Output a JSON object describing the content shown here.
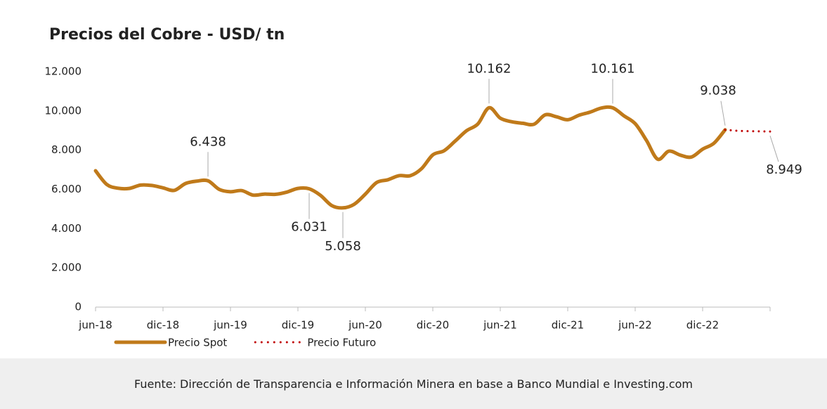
{
  "chart_data": {
    "type": "line",
    "title": "Precios del Cobre - USD/ tn",
    "categories": [
      "jun-18",
      null,
      null,
      null,
      null,
      null,
      "dic-18",
      null,
      null,
      null,
      null,
      null,
      "jun-19",
      null,
      null,
      null,
      null,
      null,
      "dic-19",
      null,
      null,
      null,
      null,
      null,
      "jun-20",
      null,
      null,
      null,
      null,
      null,
      "dic-20",
      null,
      null,
      null,
      null,
      null,
      "jun-21",
      null,
      null,
      null,
      null,
      null,
      "dic-21",
      null,
      null,
      null,
      null,
      null,
      "jun-22",
      null,
      null,
      null,
      null,
      null,
      "dic-22",
      null,
      null,
      null,
      null,
      null,
      null
    ],
    "series": [
      {
        "name": "Precio Spot",
        "color": "#c07a1a",
        "dash": false,
        "values": [
          6950,
          6250,
          6060,
          6050,
          6220,
          6200,
          6080,
          5950,
          6300,
          6420,
          6438,
          6000,
          5880,
          5940,
          5710,
          5760,
          5750,
          5860,
          6050,
          6031,
          5700,
          5180,
          5058,
          5240,
          5760,
          6350,
          6490,
          6700,
          6700,
          7060,
          7760,
          7970,
          8470,
          8990,
          9330,
          10162,
          9630,
          9450,
          9370,
          9320,
          9800,
          9700,
          9550,
          9780,
          9940,
          10150,
          10161,
          9750,
          9350,
          8500,
          7540,
          7950,
          7750,
          7650,
          8050,
          8350,
          9038,
          null,
          null,
          null,
          null
        ],
        "value_labels": [
          null,
          null,
          null,
          null,
          null,
          null,
          null,
          null,
          null,
          null,
          "6.438",
          null,
          null,
          null,
          null,
          null,
          null,
          null,
          null,
          "6.031",
          null,
          null,
          "5.058",
          null,
          null,
          null,
          null,
          null,
          null,
          null,
          null,
          null,
          null,
          null,
          null,
          "10.162",
          null,
          null,
          null,
          null,
          null,
          null,
          null,
          null,
          null,
          null,
          "10.161",
          null,
          null,
          null,
          null,
          null,
          null,
          null,
          null,
          null,
          "9.038",
          null,
          null,
          null,
          null
        ]
      },
      {
        "name": "Precio Futuro",
        "color": "#c00000",
        "dash": true,
        "values": [
          null,
          null,
          null,
          null,
          null,
          null,
          null,
          null,
          null,
          null,
          null,
          null,
          null,
          null,
          null,
          null,
          null,
          null,
          null,
          null,
          null,
          null,
          null,
          null,
          null,
          null,
          null,
          null,
          null,
          null,
          null,
          null,
          null,
          null,
          null,
          null,
          null,
          null,
          null,
          null,
          null,
          null,
          null,
          null,
          null,
          null,
          null,
          null,
          null,
          null,
          null,
          null,
          null,
          null,
          null,
          null,
          9038,
          8990,
          8970,
          8960,
          8949
        ],
        "value_labels": [
          null,
          null,
          null,
          null,
          null,
          null,
          null,
          null,
          null,
          null,
          null,
          null,
          null,
          null,
          null,
          null,
          null,
          null,
          null,
          null,
          null,
          null,
          null,
          null,
          null,
          null,
          null,
          null,
          null,
          null,
          null,
          null,
          null,
          null,
          null,
          null,
          null,
          null,
          null,
          null,
          null,
          null,
          null,
          null,
          null,
          null,
          null,
          null,
          null,
          null,
          null,
          null,
          null,
          null,
          null,
          null,
          null,
          null,
          null,
          null,
          "8.949"
        ]
      }
    ],
    "ylim": [
      0,
      12000
    ],
    "yticks": [
      0,
      {
        "value": 2000,
        "label": "2.000"
      },
      {
        "value": 4000,
        "label": "4.000"
      },
      {
        "value": 6000,
        "label": "6.000"
      },
      {
        "value": 8000,
        "label": "8.000"
      },
      {
        "value": 10000,
        "label": "10.000"
      },
      {
        "value": 12000,
        "label": "12.000"
      }
    ],
    "grid": false
  },
  "source": "Fuente: Dirección de Transparencia e Información Minera en base a Banco Mundial e Investing.com"
}
